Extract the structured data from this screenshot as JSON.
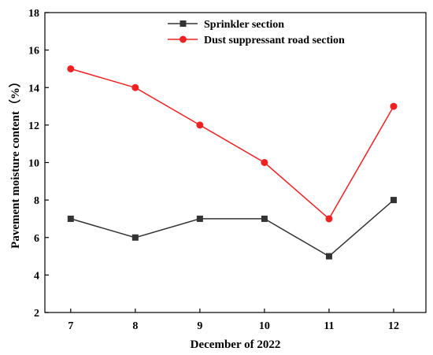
{
  "chart_data": {
    "type": "line",
    "x": [
      7,
      8,
      9,
      10,
      11,
      12
    ],
    "xlabel": "December of 2022",
    "ylabel": "Pavement moisture content（%）",
    "xlim": [
      6.6,
      12.5
    ],
    "ylim": [
      2,
      18
    ],
    "xticks": [
      "7",
      "8",
      "9",
      "10",
      "11",
      "12"
    ],
    "yticks": [
      "2",
      "4",
      "6",
      "8",
      "10",
      "12",
      "14",
      "16",
      "18"
    ],
    "grid": false,
    "legend_position": "top-center",
    "series": [
      {
        "name": "Sprinkler section",
        "values": [
          7,
          6,
          7,
          7,
          5,
          8
        ],
        "color": "#333333",
        "marker": "square"
      },
      {
        "name": "Dust suppressant road section",
        "values": [
          15,
          14,
          12,
          10,
          7,
          13
        ],
        "color": "#ee2222",
        "marker": "circle"
      }
    ]
  }
}
